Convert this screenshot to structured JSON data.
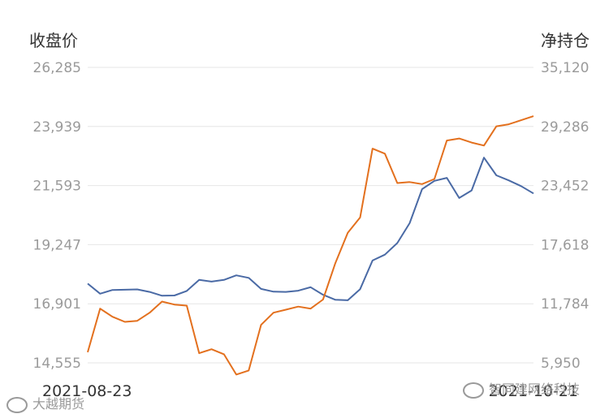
{
  "chart_data": {
    "type": "line",
    "left_axis": {
      "label": "收盘价",
      "ticks": [
        "26,285",
        "23,939",
        "21,593",
        "19,247",
        "16,901",
        "14,555"
      ],
      "ylim": [
        14555,
        26285
      ]
    },
    "right_axis": {
      "label": "净持仓",
      "ticks": [
        "35,120",
        "29,286",
        "23,452",
        "17,618",
        "11,784",
        "5,950"
      ],
      "ylim": [
        5950,
        35120
      ]
    },
    "x_labels": {
      "start": "2021-08-23",
      "end": "2021-10-21"
    },
    "grid": true,
    "series": [
      {
        "axis": "left",
        "color": "#4a6aa5",
        "values": [
          17700,
          17300,
          17450,
          17460,
          17470,
          17370,
          17220,
          17230,
          17410,
          17850,
          17780,
          17850,
          18030,
          17930,
          17490,
          17380,
          17370,
          17420,
          17560,
          17260,
          17060,
          17040,
          17480,
          18620,
          18850,
          19310,
          20100,
          21450,
          21780,
          21900,
          21100,
          21400,
          22700,
          22000,
          21800,
          21570,
          21280
        ]
      },
      {
        "axis": "right",
        "color": "#e3701e",
        "values": [
          7000,
          11300,
          10500,
          10000,
          10100,
          10900,
          12000,
          11700,
          11600,
          6900,
          7300,
          6800,
          4800,
          5200,
          9700,
          10900,
          11200,
          11500,
          11300,
          12200,
          15800,
          18800,
          20300,
          27100,
          26600,
          23700,
          23800,
          23600,
          24100,
          27900,
          28100,
          27700,
          27400,
          29300,
          29500,
          29900,
          30300
        ]
      }
    ]
  },
  "watermark_left": "大越期货",
  "watermark_right": "智同建网络科技"
}
